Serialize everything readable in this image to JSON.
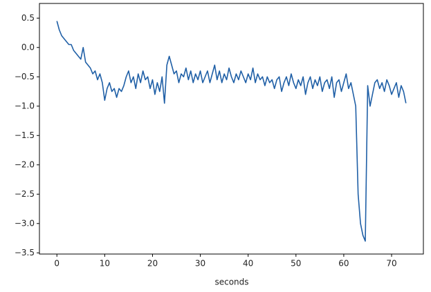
{
  "chart_data": {
    "type": "line",
    "xlabel": "seconds",
    "x": [
      0,
      0.5,
      1,
      1.5,
      2,
      2.5,
      3,
      3.5,
      4,
      4.5,
      5,
      5.5,
      6,
      6.5,
      7,
      7.5,
      8,
      8.5,
      9,
      9.5,
      10,
      10.5,
      11,
      11.5,
      12,
      12.5,
      13,
      13.5,
      14,
      14.5,
      15,
      15.5,
      16,
      16.5,
      17,
      17.5,
      18,
      18.5,
      19,
      19.5,
      20,
      20.5,
      21,
      21.5,
      22,
      22.5,
      23,
      23.5,
      24,
      24.5,
      25,
      25.5,
      26,
      26.5,
      27,
      27.5,
      28,
      28.5,
      29,
      29.5,
      30,
      30.5,
      31,
      31.5,
      32,
      32.5,
      33,
      33.5,
      34,
      34.5,
      35,
      35.5,
      36,
      36.5,
      37,
      37.5,
      38,
      38.5,
      39,
      39.5,
      40,
      40.5,
      41,
      41.5,
      42,
      42.5,
      43,
      43.5,
      44,
      44.5,
      45,
      45.5,
      46,
      46.5,
      47,
      47.5,
      48,
      48.5,
      49,
      49.5,
      50,
      50.5,
      51,
      51.5,
      52,
      52.5,
      53,
      53.5,
      54,
      54.5,
      55,
      55.5,
      56,
      56.5,
      57,
      57.5,
      58,
      58.5,
      59,
      59.5,
      60,
      60.5,
      61,
      61.5,
      62,
      62.5,
      63,
      63.5,
      64,
      64.5,
      65,
      65.5,
      66,
      66.5,
      67,
      67.5,
      68,
      68.5,
      69,
      69.5,
      70,
      70.5,
      71,
      71.5,
      72,
      72.5,
      73
    ],
    "series": [
      {
        "color": "#1f5fa6",
        "values": [
          0.45,
          0.3,
          0.2,
          0.15,
          0.1,
          0.05,
          0.05,
          -0.05,
          -0.1,
          -0.15,
          -0.2,
          0.0,
          -0.25,
          -0.3,
          -0.35,
          -0.45,
          -0.4,
          -0.55,
          -0.45,
          -0.6,
          -0.9,
          -0.7,
          -0.6,
          -0.75,
          -0.7,
          -0.85,
          -0.7,
          -0.75,
          -0.65,
          -0.5,
          -0.4,
          -0.6,
          -0.5,
          -0.7,
          -0.45,
          -0.6,
          -0.4,
          -0.55,
          -0.5,
          -0.7,
          -0.55,
          -0.8,
          -0.6,
          -0.75,
          -0.5,
          -0.95,
          -0.3,
          -0.15,
          -0.3,
          -0.45,
          -0.4,
          -0.6,
          -0.45,
          -0.5,
          -0.35,
          -0.55,
          -0.4,
          -0.6,
          -0.45,
          -0.55,
          -0.4,
          -0.6,
          -0.5,
          -0.4,
          -0.6,
          -0.45,
          -0.3,
          -0.55,
          -0.4,
          -0.6,
          -0.45,
          -0.55,
          -0.35,
          -0.5,
          -0.6,
          -0.45,
          -0.55,
          -0.4,
          -0.5,
          -0.6,
          -0.45,
          -0.55,
          -0.35,
          -0.6,
          -0.45,
          -0.55,
          -0.5,
          -0.65,
          -0.5,
          -0.6,
          -0.55,
          -0.7,
          -0.55,
          -0.5,
          -0.75,
          -0.6,
          -0.5,
          -0.65,
          -0.45,
          -0.6,
          -0.7,
          -0.55,
          -0.65,
          -0.5,
          -0.8,
          -0.6,
          -0.5,
          -0.7,
          -0.55,
          -0.65,
          -0.5,
          -0.75,
          -0.6,
          -0.55,
          -0.7,
          -0.5,
          -0.85,
          -0.6,
          -0.55,
          -0.75,
          -0.6,
          -0.45,
          -0.7,
          -0.6,
          -0.8,
          -1.0,
          -2.5,
          -3.0,
          -3.2,
          -3.3,
          -0.65,
          -1.0,
          -0.8,
          -0.6,
          -0.55,
          -0.7,
          -0.6,
          -0.75,
          -0.55,
          -0.65,
          -0.8,
          -0.7,
          -0.6,
          -0.85,
          -0.65,
          -0.75,
          -0.95
        ]
      }
    ],
    "xlim": [
      -3.65,
      76.65
    ],
    "xticks": [
      0,
      10,
      20,
      30,
      40,
      50,
      60,
      70
    ],
    "ylim": [
      -3.52,
      0.75
    ],
    "yticks": [
      {
        "value": -3.5,
        "label": "−3.5"
      },
      {
        "value": -3.0,
        "label": "−3.0"
      },
      {
        "value": -2.5,
        "label": "−2.5"
      },
      {
        "value": -2.0,
        "label": "−2.0"
      },
      {
        "value": -1.5,
        "label": "−1.5"
      },
      {
        "value": -1.0,
        "label": "−1.0"
      },
      {
        "value": -0.5,
        "label": "−0.5"
      },
      {
        "value": 0,
        "label": "0.0"
      },
      0.5
    ]
  }
}
